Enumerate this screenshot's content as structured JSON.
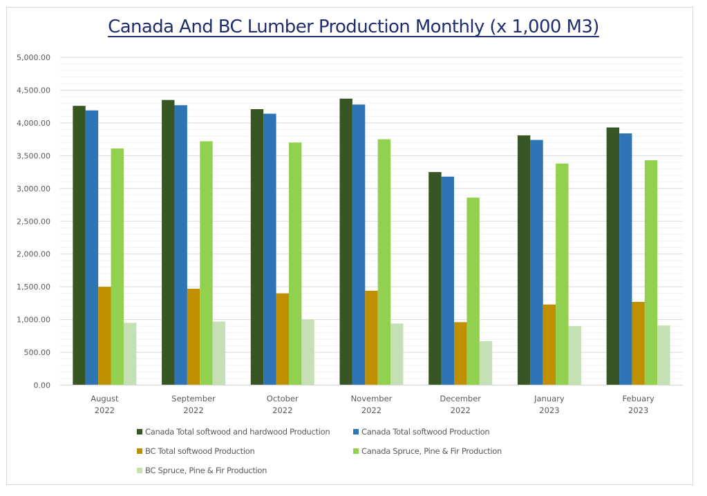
{
  "chart_data": {
    "type": "bar",
    "title": "Canada And BC Lumber Production Monthly (x 1,000 M3)",
    "xlabel": "",
    "ylabel": "",
    "ylim": [
      0,
      5000
    ],
    "y_major_step": 500,
    "y_minor_step": 100,
    "y_tick_labels": [
      "0.00",
      "500.00",
      "1,000.00",
      "1,500.00",
      "2,000.00",
      "2,500.00",
      "3,000.00",
      "3,500.00",
      "4,000.00",
      "4,500.00",
      "5,000.00"
    ],
    "grid": true,
    "legend_position": "bottom",
    "categories": [
      [
        "August",
        "2022"
      ],
      [
        "September",
        "2022"
      ],
      [
        "October",
        "2022"
      ],
      [
        "November",
        "2022"
      ],
      [
        "December",
        "2022"
      ],
      [
        "January",
        "2023"
      ],
      [
        "Febuary",
        "2023"
      ]
    ],
    "series": [
      {
        "name": "Canada Total softwood and hardwood Production",
        "color": "#375623",
        "values": [
          4260,
          4350,
          4210,
          4370,
          3250,
          3810,
          3930
        ]
      },
      {
        "name": "Canada Total softwood Production",
        "color": "#2e75b6",
        "values": [
          4190,
          4270,
          4140,
          4280,
          3180,
          3740,
          3840
        ]
      },
      {
        "name": "BC Total softwood Production",
        "color": "#bf8f00",
        "values": [
          1500,
          1470,
          1400,
          1440,
          960,
          1230,
          1270
        ]
      },
      {
        "name": "Canada Spruce, Pine & Fir Production",
        "color": "#92d050",
        "values": [
          3610,
          3720,
          3700,
          3750,
          2860,
          3380,
          3430
        ]
      },
      {
        "name": "BC Spruce, Pine & Fir Production",
        "color": "#c5e0b4",
        "values": [
          950,
          970,
          1000,
          940,
          670,
          900,
          910
        ]
      }
    ]
  }
}
